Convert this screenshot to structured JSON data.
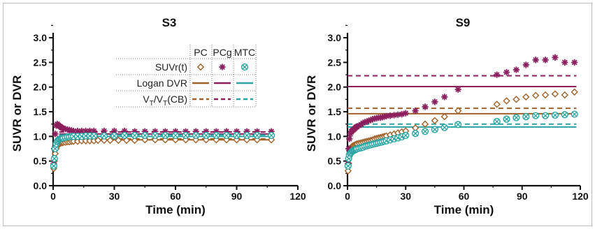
{
  "colors": {
    "PC": "#a0622a",
    "PCg": "#8c1f5e",
    "MTC": "#2aa3a3"
  },
  "chart_data": [
    {
      "type": "scatter",
      "title": "S3",
      "xlabel": "Time (min)",
      "ylabel": "SUVR or DVR",
      "xlim": [
        0,
        120
      ],
      "ylim": [
        0,
        3.1
      ],
      "xticks": [
        "0",
        "30",
        "60",
        "90",
        "120"
      ],
      "yticks": [
        "0.0",
        "0.5",
        "1.0",
        "1.5",
        "2.0",
        "2.5",
        "3.0"
      ],
      "series": [
        {
          "name": "SUVr(t) PC",
          "region": "PC",
          "marker": "diamond",
          "x": [
            0.3,
            0.6,
            1,
            1.5,
            2,
            2.5,
            3,
            3.5,
            4,
            4.5,
            5,
            6,
            7,
            8,
            9,
            10,
            12,
            14,
            16,
            18,
            20,
            22,
            25,
            28,
            32,
            36,
            40,
            45,
            50,
            55,
            60,
            65,
            70,
            75,
            80,
            85,
            90,
            95,
            100,
            107
          ],
          "y": [
            0.35,
            0.5,
            0.65,
            0.75,
            0.8,
            0.83,
            0.85,
            0.86,
            0.87,
            0.87,
            0.88,
            0.88,
            0.89,
            0.89,
            0.9,
            0.9,
            0.9,
            0.91,
            0.91,
            0.91,
            0.91,
            0.92,
            0.92,
            0.92,
            0.92,
            0.92,
            0.92,
            0.93,
            0.93,
            0.93,
            0.93,
            0.93,
            0.93,
            0.93,
            0.93,
            0.93,
            0.93,
            0.93,
            0.93,
            0.93
          ]
        },
        {
          "name": "SUVr(t) PCg",
          "region": "PCg",
          "marker": "asterisk",
          "x": [
            0.3,
            0.6,
            1,
            1.5,
            2,
            2.5,
            3,
            3.5,
            4,
            4.5,
            5,
            6,
            7,
            8,
            9,
            10,
            12,
            14,
            16,
            18,
            20,
            25,
            30,
            35,
            40,
            45,
            50,
            55,
            60,
            65,
            70,
            75,
            80,
            85,
            90,
            95,
            100,
            107
          ],
          "y": [
            0.45,
            0.75,
            1.05,
            1.22,
            1.25,
            1.23,
            1.21,
            1.2,
            1.18,
            1.17,
            1.16,
            1.15,
            1.14,
            1.13,
            1.12,
            1.11,
            1.11,
            1.11,
            1.11,
            1.11,
            1.11,
            1.11,
            1.11,
            1.11,
            1.1,
            1.1,
            1.1,
            1.1,
            1.1,
            1.1,
            1.1,
            1.1,
            1.1,
            1.1,
            1.1,
            1.1,
            1.1,
            1.1
          ]
        },
        {
          "name": "SUVr(t) MTC",
          "region": "MTC",
          "marker": "circle-x",
          "x": [
            0.3,
            0.6,
            1,
            1.5,
            2,
            2.5,
            3,
            3.5,
            4,
            4.5,
            5,
            6,
            7,
            8,
            9,
            10,
            12,
            14,
            16,
            18,
            20,
            25,
            30,
            35,
            40,
            45,
            50,
            55,
            60,
            65,
            70,
            75,
            80,
            85,
            90,
            95,
            100,
            107
          ],
          "y": [
            0.4,
            0.55,
            0.75,
            0.85,
            0.9,
            0.92,
            0.94,
            0.95,
            0.96,
            0.97,
            0.97,
            0.98,
            0.99,
            0.99,
            1.0,
            1.0,
            1.0,
            1.0,
            1.01,
            1.01,
            1.01,
            1.01,
            1.01,
            1.02,
            1.02,
            1.02,
            1.02,
            1.02,
            1.02,
            1.02,
            1.02,
            1.02,
            1.02,
            1.02,
            1.02,
            1.02,
            1.02,
            1.02
          ]
        }
      ],
      "lines": [
        {
          "region": "PC",
          "kind": "Logan DVR",
          "style": "solid",
          "y": 0.93,
          "x": [
            3,
            108
          ]
        },
        {
          "region": "PCg",
          "kind": "Logan DVR",
          "style": "solid",
          "y": 1.05,
          "x": [
            3,
            108
          ]
        },
        {
          "region": "MTC",
          "kind": "Logan DVR",
          "style": "solid",
          "y": 1.0,
          "x": [
            3,
            108
          ]
        },
        {
          "region": "PC",
          "kind": "VT/VT(CB)",
          "style": "dashed",
          "y": 0.95,
          "x": [
            3,
            108
          ]
        },
        {
          "region": "PCg",
          "kind": "VT/VT(CB)",
          "style": "dashed",
          "y": 1.09,
          "x": [
            3,
            108
          ]
        },
        {
          "region": "MTC",
          "kind": "VT/VT(CB)",
          "style": "dashed",
          "y": 1.03,
          "x": [
            3,
            108
          ]
        }
      ],
      "legend": {
        "placement": "top-right",
        "columns": [
          "PC",
          "PCg",
          "MTC"
        ],
        "rows": [
          "SUVr(t)",
          "Logan DVR"
        ],
        "ratio_row": {
          "main1": "V",
          "sub1": "T",
          "mid": "/V",
          "sub2": "T",
          "tail": "(CB)"
        }
      },
      "grid": false
    },
    {
      "type": "scatter",
      "title": "S9",
      "xlabel": "Time (min)",
      "ylabel": "SUVR or DVR",
      "xlim": [
        0,
        120
      ],
      "ylim": [
        0,
        3.1
      ],
      "xticks": [
        "0",
        "30",
        "60",
        "90",
        "120"
      ],
      "yticks": [
        "0.0",
        "0.5",
        "1.0",
        "1.5",
        "2.0",
        "2.5",
        "3.0"
      ],
      "series": [
        {
          "name": "SUVr(t) PC",
          "region": "PC",
          "marker": "diamond",
          "x": [
            0.3,
            0.6,
            1,
            1.5,
            2,
            2.5,
            3,
            3.5,
            4,
            4.5,
            5,
            6,
            7,
            8,
            9,
            10,
            11,
            12,
            13,
            14,
            15,
            16,
            17,
            18,
            19,
            20,
            22,
            24,
            26,
            28,
            30,
            35,
            40,
            45,
            50,
            57,
            77,
            82,
            87,
            92,
            97,
            102,
            107,
            112,
            117
          ],
          "y": [
            0.3,
            0.45,
            0.65,
            0.75,
            0.78,
            0.8,
            0.81,
            0.82,
            0.83,
            0.84,
            0.85,
            0.86,
            0.87,
            0.88,
            0.89,
            0.9,
            0.91,
            0.92,
            0.93,
            0.95,
            0.96,
            0.97,
            0.98,
            0.99,
            1.0,
            1.01,
            1.03,
            1.05,
            1.07,
            1.09,
            1.11,
            1.17,
            1.25,
            1.32,
            1.4,
            1.52,
            1.65,
            1.72,
            1.75,
            1.8,
            1.83,
            1.84,
            1.86,
            1.84,
            1.9
          ]
        },
        {
          "name": "SUVr(t) PCg",
          "region": "PCg",
          "marker": "asterisk",
          "x": [
            0.3,
            0.6,
            1,
            1.5,
            2,
            2.5,
            3,
            3.5,
            4,
            4.5,
            5,
            6,
            7,
            8,
            9,
            10,
            11,
            12,
            13,
            14,
            15,
            16,
            17,
            18,
            19,
            20,
            22,
            24,
            26,
            28,
            30,
            35,
            40,
            45,
            50,
            57,
            77,
            82,
            87,
            92,
            97,
            102,
            107,
            112,
            117
          ],
          "y": [
            0.45,
            0.75,
            0.95,
            1.05,
            1.1,
            1.12,
            1.13,
            1.15,
            1.17,
            1.19,
            1.2,
            1.22,
            1.24,
            1.27,
            1.29,
            1.3,
            1.32,
            1.33,
            1.35,
            1.36,
            1.37,
            1.38,
            1.38,
            1.39,
            1.4,
            1.41,
            1.42,
            1.43,
            1.44,
            1.45,
            1.47,
            1.52,
            1.6,
            1.7,
            1.8,
            1.95,
            2.25,
            2.3,
            2.35,
            2.45,
            2.55,
            2.55,
            2.6,
            2.5,
            2.5
          ]
        },
        {
          "name": "SUVr(t) MTC",
          "region": "MTC",
          "marker": "circle-x",
          "x": [
            0.3,
            0.6,
            1,
            1.5,
            2,
            2.5,
            3,
            3.5,
            4,
            4.5,
            5,
            6,
            7,
            8,
            9,
            10,
            11,
            12,
            13,
            14,
            15,
            16,
            17,
            18,
            19,
            20,
            22,
            24,
            26,
            28,
            30,
            35,
            40,
            45,
            50,
            57,
            77,
            82,
            87,
            92,
            97,
            102,
            107,
            112,
            117
          ],
          "y": [
            0.4,
            0.55,
            0.62,
            0.66,
            0.68,
            0.7,
            0.71,
            0.72,
            0.73,
            0.74,
            0.75,
            0.76,
            0.77,
            0.78,
            0.8,
            0.81,
            0.82,
            0.83,
            0.84,
            0.85,
            0.86,
            0.87,
            0.88,
            0.89,
            0.9,
            0.91,
            0.93,
            0.95,
            0.97,
            0.99,
            1.02,
            1.06,
            1.1,
            1.14,
            1.18,
            1.24,
            1.3,
            1.35,
            1.38,
            1.4,
            1.42,
            1.42,
            1.43,
            1.44,
            1.45
          ]
        }
      ],
      "lines": [
        {
          "region": "PC",
          "kind": "Logan DVR",
          "style": "solid",
          "y": 1.46,
          "x": [
            0,
            118
          ]
        },
        {
          "region": "PCg",
          "kind": "Logan DVR",
          "style": "solid",
          "y": 2.01,
          "x": [
            0,
            118
          ]
        },
        {
          "region": "MTC",
          "kind": "Logan DVR",
          "style": "solid",
          "y": 1.19,
          "x": [
            0,
            118
          ]
        },
        {
          "region": "PC",
          "kind": "VT/VT(CB)",
          "style": "dashed",
          "y": 1.57,
          "x": [
            0,
            118
          ]
        },
        {
          "region": "PCg",
          "kind": "VT/VT(CB)",
          "style": "dashed",
          "y": 2.23,
          "x": [
            0,
            118
          ]
        },
        {
          "region": "MTC",
          "kind": "VT/VT(CB)",
          "style": "dashed",
          "y": 1.25,
          "x": [
            0,
            118
          ]
        }
      ],
      "grid": false
    }
  ]
}
